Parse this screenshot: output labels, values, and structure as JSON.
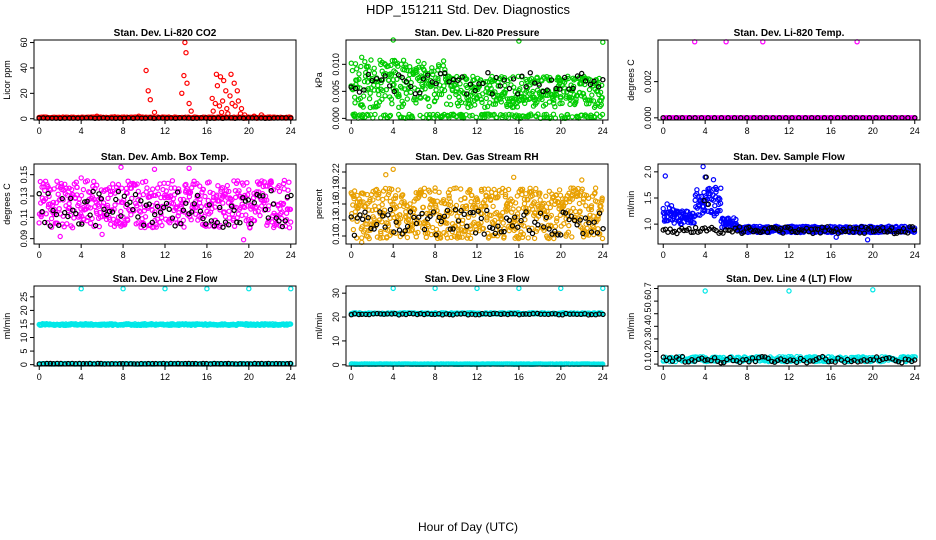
{
  "figure": {
    "title": "HDP_151211  Std. Dev. Diagnostics",
    "xlabel": "Hour of Day (UTC)"
  },
  "chart_data": [
    {
      "type": "scatter",
      "title": "Stan. Dev. Li-820 CO2",
      "ylabel": "Licor ppm",
      "xlim": [
        -0.5,
        24.5
      ],
      "ylim": [
        -1,
        62
      ],
      "xticks": [
        0,
        4,
        8,
        12,
        16,
        20,
        24
      ],
      "yticks": [
        0,
        20,
        40,
        60
      ],
      "ytick_labels": [
        "0",
        "20",
        "40",
        "60"
      ],
      "series": [
        {
          "name": "red",
          "color": "#ff0000",
          "model": {
            "kind": "base",
            "base": 0.5,
            "noise": 0.8,
            "n": 320
          },
          "extra": [
            [
              10.2,
              38
            ],
            [
              10.4,
              22
            ],
            [
              10.6,
              15
            ],
            [
              11.0,
              5
            ],
            [
              13.9,
              60
            ],
            [
              14.0,
              52
            ],
            [
              13.8,
              34
            ],
            [
              14.1,
              28
            ],
            [
              13.6,
              20
            ],
            [
              14.3,
              12
            ],
            [
              14.5,
              6
            ],
            [
              16.9,
              35
            ],
            [
              17.3,
              33
            ],
            [
              17.0,
              26
            ],
            [
              17.6,
              30
            ],
            [
              17.8,
              22
            ],
            [
              18.3,
              35
            ],
            [
              18.6,
              28
            ],
            [
              18.9,
              22
            ],
            [
              16.5,
              16
            ],
            [
              16.8,
              12
            ],
            [
              17.2,
              10
            ],
            [
              17.5,
              14
            ],
            [
              17.9,
              8
            ],
            [
              18.2,
              18
            ],
            [
              18.4,
              12
            ],
            [
              18.7,
              10
            ],
            [
              19.0,
              14
            ],
            [
              19.3,
              8
            ],
            [
              16.6,
              6
            ],
            [
              17.4,
              5
            ],
            [
              18.0,
              4
            ],
            [
              19.2,
              4
            ],
            [
              19.6,
              3
            ],
            [
              20.5,
              2
            ],
            [
              21.2,
              3
            ],
            [
              9.5,
              2
            ],
            [
              5.5,
              2
            ],
            [
              7.2,
              1.5
            ]
          ]
        },
        {
          "name": "black",
          "color": "#000000",
          "model": {
            "kind": "base",
            "base": 0.3,
            "noise": 0.4,
            "n": 60
          },
          "extra": []
        }
      ]
    },
    {
      "type": "scatter",
      "title": "Stan. Dev. Li-820 Pressure",
      "ylabel": "kPa",
      "xlim": [
        -0.5,
        24.5
      ],
      "ylim": [
        -0.0003,
        0.0145
      ],
      "xticks": [
        0,
        4,
        8,
        12,
        16,
        20,
        24
      ],
      "yticks": [
        0.0,
        0.005,
        0.01
      ],
      "ytick_labels": [
        "0.000",
        "0.005",
        "0.010"
      ],
      "series": [
        {
          "name": "green",
          "color": "#00cc00",
          "model": {
            "kind": "pressure",
            "n": 700
          },
          "extra": [
            [
              4.0,
              0.0145
            ],
            [
              1.0,
              0.0113
            ],
            [
              16.0,
              0.0143
            ],
            [
              24.0,
              0.0141
            ]
          ]
        },
        {
          "name": "black",
          "color": "#000000",
          "model": {
            "kind": "band",
            "lo": 0.0045,
            "hi": 0.0085,
            "n": 60
          },
          "extra": []
        }
      ]
    },
    {
      "type": "scatter",
      "title": "Stan. Dev. Li-820 Temp.",
      "ylabel": "degrees C",
      "xlim": [
        -0.5,
        24.5
      ],
      "ylim": [
        -0.00012,
        0.0043
      ],
      "xticks": [
        0,
        4,
        8,
        12,
        16,
        20,
        24
      ],
      "yticks": [
        0.0,
        0.002
      ],
      "ytick_labels": [
        "0.000",
        "0.002"
      ],
      "series": [
        {
          "name": "magenta",
          "color": "#ff00ff",
          "model": {
            "kind": "base",
            "base": 0.0,
            "noise": 0.0,
            "n": 220
          },
          "extra": [
            [
              3.0,
              0.0042
            ],
            [
              6.0,
              0.0042
            ],
            [
              9.5,
              0.0042
            ],
            [
              18.5,
              0.0042
            ]
          ]
        },
        {
          "name": "black",
          "color": "#000000",
          "model": {
            "kind": "base",
            "base": 0.0,
            "noise": 0.0,
            "n": 40
          },
          "extra": []
        }
      ]
    },
    {
      "type": "scatter",
      "title": "Stan. Dev. Amb. Box Temp.",
      "ylabel": "degrees C",
      "xlim": [
        -0.5,
        24.5
      ],
      "ylim": [
        0.085,
        0.16
      ],
      "xticks": [
        0,
        4,
        8,
        12,
        16,
        20,
        24
      ],
      "yticks": [
        0.09,
        0.11,
        0.13,
        0.15
      ],
      "ytick_labels": [
        "0.09",
        "0.11",
        "0.13",
        "0.15"
      ],
      "series": [
        {
          "name": "magenta",
          "color": "#ff00ff",
          "model": {
            "kind": "band",
            "lo": 0.1,
            "hi": 0.145,
            "n": 540
          },
          "extra": [
            [
              0.4,
              0.125
            ],
            [
              4.0,
              0.147
            ],
            [
              7.8,
              0.157
            ],
            [
              11.0,
              0.155
            ],
            [
              14.3,
              0.156
            ],
            [
              19.5,
              0.089
            ],
            [
              2.0,
              0.092
            ],
            [
              6.0,
              0.094
            ]
          ]
        },
        {
          "name": "black",
          "color": "#000000",
          "model": {
            "kind": "band",
            "lo": 0.1,
            "hi": 0.135,
            "n": 90
          },
          "extra": []
        }
      ]
    },
    {
      "type": "scatter",
      "title": "Stan. Dev. Gas Stream RH",
      "ylabel": "percent",
      "xlim": [
        -0.5,
        24.5
      ],
      "ylim": [
        0.085,
        0.235
      ],
      "xticks": [
        0,
        4,
        8,
        12,
        16,
        20,
        24
      ],
      "yticks": [
        0.1,
        0.13,
        0.16,
        0.19,
        0.22
      ],
      "ytick_labels": [
        "0.10",
        "0.13",
        "0.16",
        "0.19",
        "0.22"
      ],
      "series": [
        {
          "name": "orange",
          "color": "#e8a000",
          "model": {
            "kind": "band",
            "lo": 0.095,
            "hi": 0.19,
            "n": 640
          },
          "extra": [
            [
              4.0,
              0.225
            ],
            [
              15.5,
              0.21
            ],
            [
              22.0,
              0.205
            ],
            [
              3.3,
              0.215
            ],
            [
              1.0,
              0.088
            ],
            [
              8.0,
              0.19
            ]
          ]
        },
        {
          "name": "black",
          "color": "#000000",
          "model": {
            "kind": "band",
            "lo": 0.1,
            "hi": 0.15,
            "n": 90
          },
          "extra": []
        }
      ]
    },
    {
      "type": "scatter",
      "title": "Stan. Dev. Sample Flow",
      "ylabel": "ml/min",
      "xlim": [
        -0.5,
        24.5
      ],
      "ylim": [
        0.62,
        2.15
      ],
      "xticks": [
        0,
        4,
        8,
        12,
        16,
        20,
        24
      ],
      "yticks": [
        1.0,
        1.5,
        2.0
      ],
      "ytick_labels": [
        "1.0",
        "1.5",
        "2.0"
      ],
      "series": [
        {
          "name": "blue",
          "color": "#0000ff",
          "model": {
            "kind": "flow",
            "n": 560
          },
          "extra": [
            [
              0.2,
              1.92
            ],
            [
              3.8,
              2.1
            ],
            [
              4.0,
              1.9
            ],
            [
              3.5,
              1.45
            ],
            [
              4.8,
              1.85
            ],
            [
              5.0,
              1.7
            ],
            [
              19.5,
              0.7
            ],
            [
              16.5,
              0.75
            ]
          ]
        },
        {
          "name": "black",
          "color": "#000000",
          "model": {
            "kind": "band",
            "lo": 0.82,
            "hi": 0.95,
            "n": 110
          },
          "extra": [
            [
              3.9,
              1.45
            ],
            [
              4.1,
              1.9
            ],
            [
              4.3,
              1.38
            ]
          ]
        }
      ]
    },
    {
      "type": "scatter",
      "title": "Stan. Dev. Line 2 Flow",
      "ylabel": "ml/min",
      "xlim": [
        -0.5,
        24.5
      ],
      "ylim": [
        -0.5,
        29
      ],
      "xticks": [
        0,
        4,
        8,
        12,
        16,
        20,
        24
      ],
      "yticks": [
        0,
        5,
        10,
        15,
        20,
        25
      ],
      "ytick_labels": [
        "0",
        "5",
        "10",
        "15",
        "20",
        "25"
      ],
      "series": [
        {
          "name": "cyan-upper",
          "color": "#00e8e8",
          "model": {
            "kind": "line",
            "level": 14.8,
            "slope": 0.0,
            "noise": 0.3,
            "n": 300
          },
          "extra": [
            [
              4.0,
              28
            ],
            [
              8.0,
              28
            ],
            [
              12.0,
              28
            ],
            [
              16.0,
              28
            ],
            [
              20.0,
              28
            ],
            [
              24.0,
              28
            ]
          ]
        },
        {
          "name": "cyan-lower",
          "color": "#00e8e8",
          "model": {
            "kind": "line",
            "level": 0.3,
            "slope": 0.0,
            "noise": 0.1,
            "n": 200
          },
          "extra": []
        },
        {
          "name": "black",
          "color": "#000000",
          "model": {
            "kind": "line",
            "level": 0.35,
            "slope": 0.0,
            "noise": 0.1,
            "n": 70
          },
          "extra": []
        }
      ]
    },
    {
      "type": "scatter",
      "title": "Stan. Dev. Line 3 Flow",
      "ylabel": "ml/min",
      "xlim": [
        -0.5,
        24.5
      ],
      "ylim": [
        -0.5,
        33
      ],
      "xticks": [
        0,
        4,
        8,
        12,
        16,
        20,
        24
      ],
      "yticks": [
        0,
        10,
        20,
        30
      ],
      "ytick_labels": [
        "0",
        "10",
        "20",
        "30"
      ],
      "series": [
        {
          "name": "cyan-upper",
          "color": "#00e8e8",
          "model": {
            "kind": "line",
            "level": 21.5,
            "slope": 0.0,
            "noise": 0.3,
            "n": 260
          },
          "extra": [
            [
              4.0,
              32
            ],
            [
              8.0,
              32
            ],
            [
              12.0,
              32
            ],
            [
              16.0,
              32
            ],
            [
              20.0,
              32
            ],
            [
              24.0,
              32
            ]
          ]
        },
        {
          "name": "black",
          "color": "#000000",
          "model": {
            "kind": "line",
            "level": 21.2,
            "slope": 0.0,
            "noise": 0.3,
            "n": 70
          },
          "extra": []
        },
        {
          "name": "cyan-lower",
          "color": "#00e8e8",
          "model": {
            "kind": "line",
            "level": 0.3,
            "slope": 0.0,
            "noise": 0.1,
            "n": 220
          },
          "extra": []
        }
      ]
    },
    {
      "type": "scatter",
      "title": "Stan. Dev. Line 4 (LT) Flow",
      "ylabel": "ml/min",
      "xlim": [
        -0.5,
        24.5
      ],
      "ylim": [
        0.085,
        0.72
      ],
      "xticks": [
        0,
        4,
        8,
        12,
        16,
        20,
        24
      ],
      "yticks": [
        0.1,
        0.2,
        0.3,
        0.4,
        0.5,
        0.6,
        0.7
      ],
      "ytick_labels": [
        "0.1",
        "0.2",
        "0.3",
        "0.4",
        "0.5",
        "0.6",
        "0.7"
      ],
      "series": [
        {
          "name": "cyan",
          "color": "#00e8e8",
          "model": {
            "kind": "band",
            "lo": 0.12,
            "hi": 0.16,
            "n": 320
          },
          "extra": [
            [
              4.0,
              0.68
            ],
            [
              12.0,
              0.68
            ],
            [
              20.0,
              0.69
            ]
          ]
        },
        {
          "name": "black",
          "color": "#000000",
          "model": {
            "kind": "band",
            "lo": 0.11,
            "hi": 0.16,
            "n": 80
          },
          "extra": []
        }
      ]
    }
  ]
}
